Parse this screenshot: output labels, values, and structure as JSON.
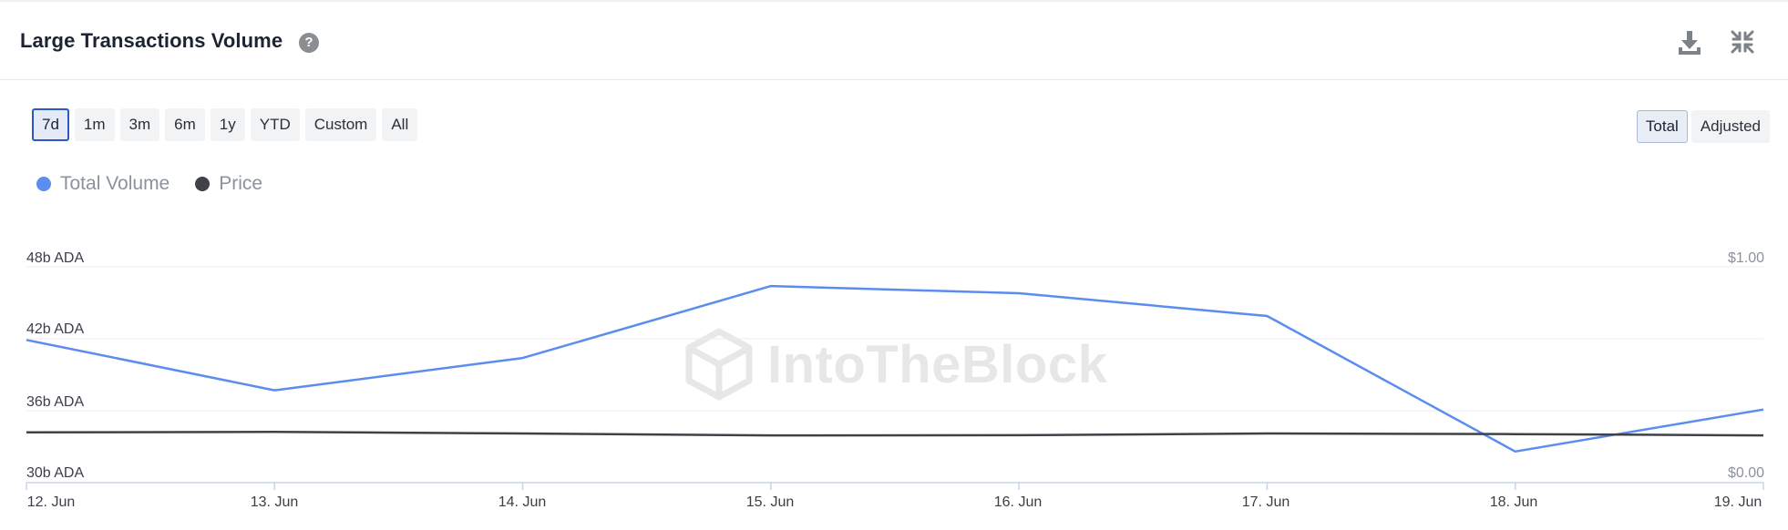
{
  "header": {
    "title": "Large Transactions Volume",
    "help_glyph": "?",
    "icons": [
      "help-icon",
      "download-icon",
      "collapse-icon"
    ]
  },
  "range_buttons": [
    {
      "label": "7d",
      "active": true
    },
    {
      "label": "1m",
      "active": false
    },
    {
      "label": "3m",
      "active": false
    },
    {
      "label": "6m",
      "active": false
    },
    {
      "label": "1y",
      "active": false
    },
    {
      "label": "YTD",
      "active": false
    },
    {
      "label": "Custom",
      "active": false
    },
    {
      "label": "All",
      "active": false
    }
  ],
  "mode_buttons": [
    {
      "label": "Total",
      "active": true
    },
    {
      "label": "Adjusted",
      "active": false
    }
  ],
  "watermark": "IntoTheBlock",
  "colors": {
    "total_volume": "#5b8def",
    "price": "#3f4247",
    "grid": "#eceef1",
    "axis": "#c9d3ea"
  },
  "chart_data": {
    "type": "line",
    "x": [
      "12. Jun",
      "13. Jun",
      "14. Jun",
      "15. Jun",
      "16. Jun",
      "17. Jun",
      "18. Jun",
      "19. Jun"
    ],
    "series": [
      {
        "name": "Total Volume",
        "axis": "left",
        "values": [
          41.9,
          37.7,
          40.4,
          46.4,
          45.8,
          43.9,
          32.6,
          36.1
        ]
      },
      {
        "name": "Price",
        "axis": "right",
        "values": [
          0.233,
          0.235,
          0.228,
          0.219,
          0.22,
          0.228,
          0.225,
          0.219
        ]
      }
    ],
    "left_axis": {
      "ticks": [
        "48b ADA",
        "42b ADA",
        "36b ADA",
        "30b ADA"
      ],
      "ylim": [
        30,
        48
      ]
    },
    "right_axis": {
      "ticks": [
        "$1.00",
        "$0.00"
      ],
      "ylim": [
        0,
        1
      ]
    },
    "legend": "top-left",
    "grid": true
  }
}
